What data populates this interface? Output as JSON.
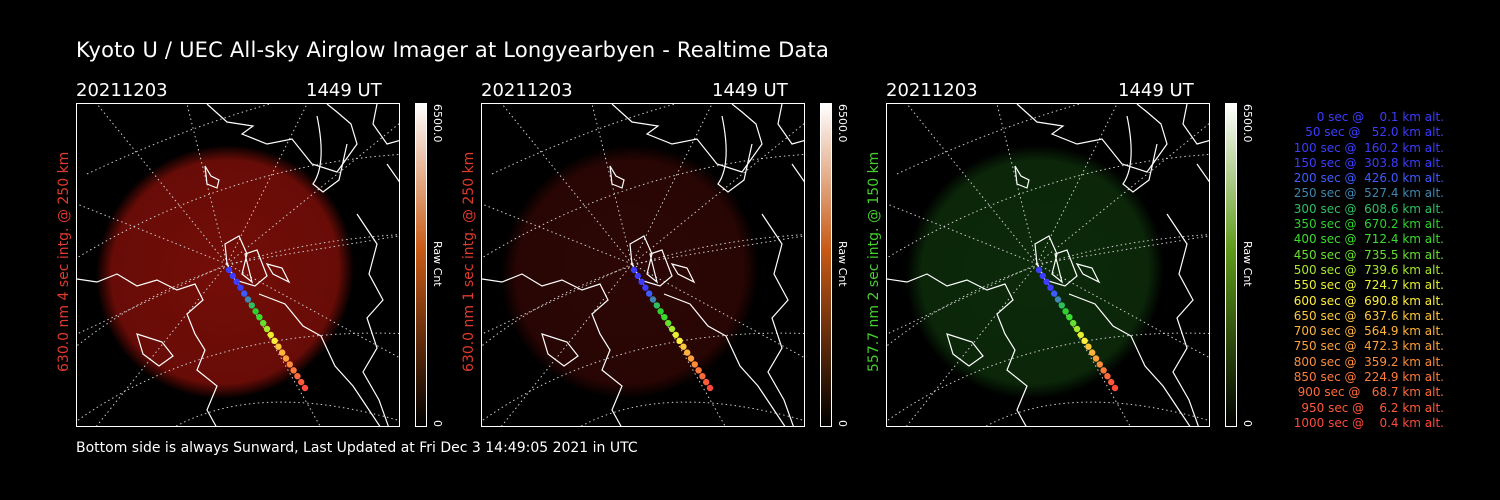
{
  "title": "Kyoto U / UEC All-sky Airglow Imager at Longyearbyen - Realtime Data",
  "footer": "Bottom side is always Sunward, Last Updated at Fri Dec  3 14:49:05 2021 in UTC",
  "panels": [
    {
      "date": "20211203",
      "time": "1449 UT",
      "ylabel": "630.0 nm 4 sec intg. @ 250 km",
      "label_color": "#e03a2a",
      "cbar_max": "6500.0",
      "cbar_min": "0",
      "cbar_label": "Raw Cnt",
      "glow_color": "#7a0e08",
      "glow_opacity": 0.95,
      "cbar_color": "#c85a16"
    },
    {
      "date": "20211203",
      "time": "1449 UT",
      "ylabel": "630.0 nm 1 sec intg. @ 250 km",
      "label_color": "#e03a2a",
      "cbar_max": "6500.0",
      "cbar_min": "0",
      "cbar_label": "Raw Cnt",
      "glow_color": "#2c0604",
      "glow_opacity": 1.0,
      "cbar_color": "#c85a16"
    },
    {
      "date": "20211203",
      "time": "1449 UT",
      "ylabel": "557.7 nm 2 sec intg. @ 150 km",
      "label_color": "#44d02c",
      "cbar_max": "6500.0",
      "cbar_min": "0",
      "cbar_label": "Raw Cnt",
      "glow_color": "#0c2a0a",
      "glow_opacity": 1.0,
      "cbar_color": "#5f9a1a"
    }
  ],
  "legend": [
    {
      "text": "0 sec @    0.1 km alt.",
      "color": "#3c3cff"
    },
    {
      "text": "50 sec @   52.0 km alt.",
      "color": "#3c3cff"
    },
    {
      "text": "100 sec @  160.2 km alt.",
      "color": "#3c3cff"
    },
    {
      "text": "150 sec @  303.8 km alt.",
      "color": "#3c3cff"
    },
    {
      "text": "200 sec @  426.0 km alt.",
      "color": "#3c5cff"
    },
    {
      "text": "250 sec @  527.4 km alt.",
      "color": "#3e86b0"
    },
    {
      "text": "300 sec @  608.6 km alt.",
      "color": "#2ec05e"
    },
    {
      "text": "350 sec @  670.2 km alt.",
      "color": "#2ed02e"
    },
    {
      "text": "400 sec @  712.4 km alt.",
      "color": "#3adc2e"
    },
    {
      "text": "450 sec @  735.5 km alt.",
      "color": "#66e02e"
    },
    {
      "text": "500 sec @  739.6 km alt.",
      "color": "#a6e82e"
    },
    {
      "text": "550 sec @  724.7 km alt.",
      "color": "#e6f02e"
    },
    {
      "text": "600 sec @  690.8 km alt.",
      "color": "#fff03a"
    },
    {
      "text": "650 sec @  637.6 km alt.",
      "color": "#ffc83a"
    },
    {
      "text": "700 sec @  564.9 km alt.",
      "color": "#ffb43a"
    },
    {
      "text": "750 sec @  472.3 km alt.",
      "color": "#ffa03a"
    },
    {
      "text": "800 sec @  359.2 km alt.",
      "color": "#ff8c3a"
    },
    {
      "text": "850 sec @  224.9 km alt.",
      "color": "#ff7a3a"
    },
    {
      "text": "900 sec @   68.7 km alt.",
      "color": "#ff6a3a"
    },
    {
      "text": "950 sec @    6.2 km alt.",
      "color": "#ff5a3a"
    },
    {
      "text": "1000 sec @    0.4 km alt.",
      "color": "#ff4a3a"
    }
  ],
  "icons": {
    "map": "all-sky-map",
    "track": "rocket-trajectory"
  }
}
